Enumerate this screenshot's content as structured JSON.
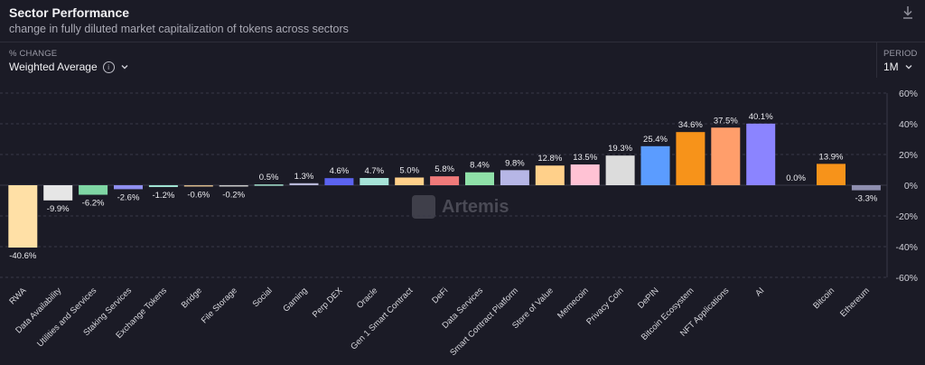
{
  "header": {
    "title": "Sector Performance",
    "subtitle": "change in fully diluted market capitalization of tokens across sectors"
  },
  "controls": {
    "change_label": "% CHANGE",
    "change_value": "Weighted Average",
    "period_label": "PERIOD",
    "period_value": "1M"
  },
  "watermark": "Artemis",
  "icons": [
    "download-icon",
    "info-icon",
    "chevron-down-icon"
  ],
  "chart_data": {
    "type": "bar",
    "title": "Sector Performance",
    "ylim": [
      -60,
      60
    ],
    "yticks": [
      "60%",
      "40%",
      "20%",
      "0%",
      "-20%",
      "-40%",
      "-60%"
    ],
    "grid": true,
    "categories": [
      "RWA",
      "Data Availability",
      "Utilities and Services",
      "Staking Services",
      "Exchange Tokens",
      "Bridge",
      "File Storage",
      "Social",
      "Gaming",
      "Perp DEX",
      "Oracle",
      "Gen 1 Smart Contract",
      "DeFi",
      "Data Services",
      "Smart Contract Platform",
      "Store of Value",
      "Memecoin",
      "Privacy Coin",
      "DePIN",
      "Bitcoin Ecosystem",
      "NFT Applications",
      "AI",
      "",
      "Bitcoin",
      "Ethereum"
    ],
    "values": [
      -40.6,
      -9.9,
      -6.2,
      -2.6,
      -1.2,
      -0.6,
      -0.2,
      0.5,
      1.3,
      4.6,
      4.7,
      5.0,
      5.8,
      8.4,
      9.8,
      12.8,
      13.5,
      19.3,
      25.4,
      34.6,
      37.5,
      40.1,
      0.0,
      13.9,
      -3.3
    ],
    "labels": [
      "-40.6%",
      "-9.9%",
      "-6.2%",
      "-2.6%",
      "-1.2%",
      "-0.6%",
      "-0.2%",
      "0.5%",
      "1.3%",
      "4.6%",
      "4.7%",
      "5.0%",
      "5.8%",
      "8.4%",
      "9.8%",
      "12.8%",
      "13.5%",
      "19.3%",
      "25.4%",
      "34.6%",
      "37.5%",
      "40.1%",
      "0.0%",
      "13.9%",
      "-3.3%"
    ],
    "colors": [
      "#ffe0a6",
      "#e6e6e6",
      "#7fd6a4",
      "#8f8ff0",
      "#9fe3d2",
      "#d8b98c",
      "#c8c8c8",
      "#a6e3d0",
      "#b8b8d8",
      "#5b63f0",
      "#a6e3d8",
      "#ffd08a",
      "#f07a7a",
      "#8fe0a8",
      "#b6b6e6",
      "#ffd08a",
      "#ffc2d4",
      "#dcdcdc",
      "#5b9cff",
      "#f7931a",
      "#ff9e6b",
      "#8b84ff",
      "#7a7a7a",
      "#f7931a",
      "#8f8fb0"
    ]
  }
}
